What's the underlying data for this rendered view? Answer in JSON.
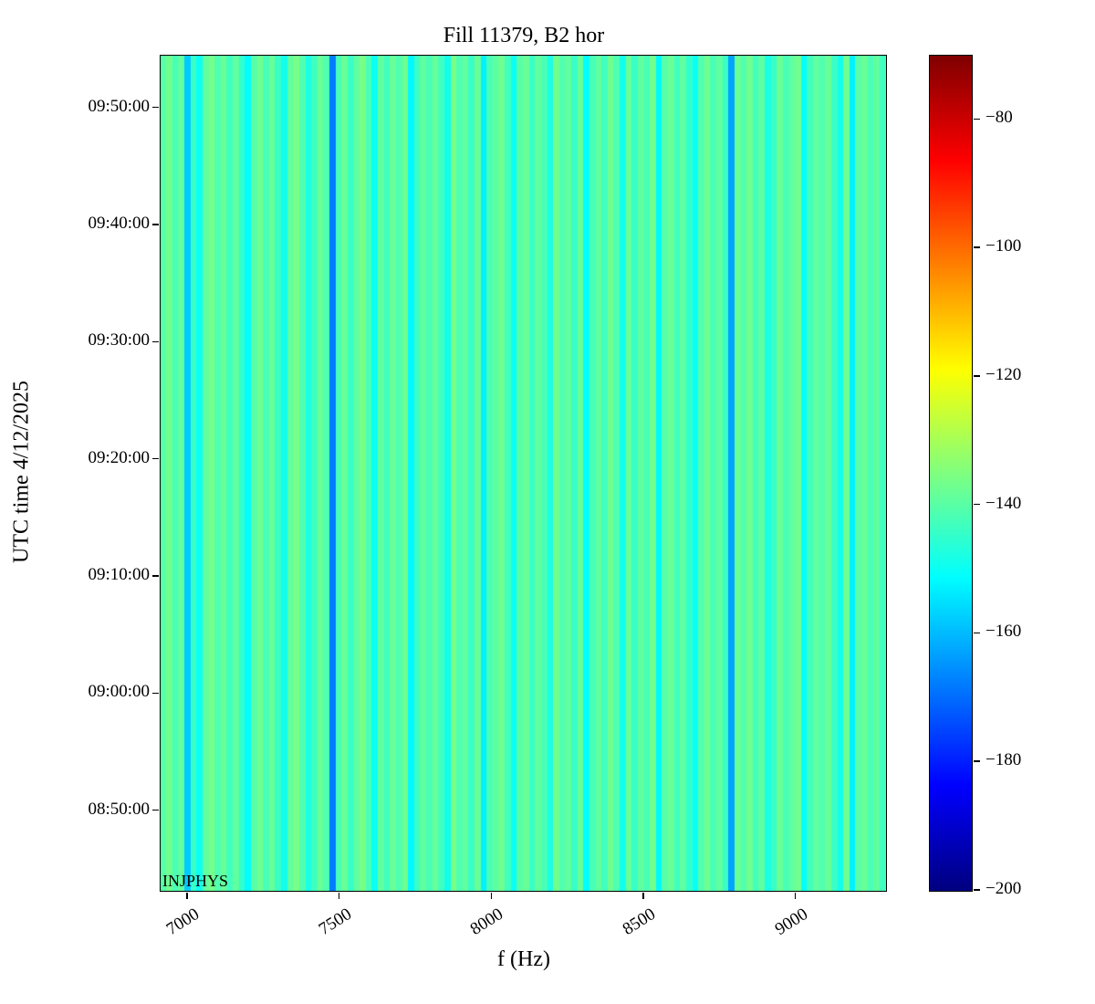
{
  "chart_data": {
    "type": "heatmap",
    "title": "Fill 11379, B2 hor",
    "xlabel": "f (Hz)",
    "ylabel": "UTC time 4/12/2025",
    "annotation": "INJPHYS",
    "colormap": "jet",
    "clim": [
      -200,
      -70
    ],
    "x_range_hz": [
      6910,
      9295
    ],
    "xticks": [
      {
        "label": "7000",
        "value": 7000
      },
      {
        "label": "7500",
        "value": 7500
      },
      {
        "label": "8000",
        "value": 8000
      },
      {
        "label": "8500",
        "value": 8500
      },
      {
        "label": "9000",
        "value": 9000
      }
    ],
    "y_range_minutes": [
      523.2,
      594.5
    ],
    "yticks": [
      {
        "label": "08:50:00",
        "minutes": 530
      },
      {
        "label": "09:00:00",
        "minutes": 540
      },
      {
        "label": "09:10:00",
        "minutes": 550
      },
      {
        "label": "09:20:00",
        "minutes": 560
      },
      {
        "label": "09:30:00",
        "minutes": 570
      },
      {
        "label": "09:40:00",
        "minutes": 580
      },
      {
        "label": "09:50:00",
        "minutes": 590
      }
    ],
    "colorbar_ticks": [
      {
        "label": "−80",
        "value": -80
      },
      {
        "label": "−100",
        "value": -100
      },
      {
        "label": "−120",
        "value": -120
      },
      {
        "label": "−140",
        "value": -140
      },
      {
        "label": "−160",
        "value": -160
      },
      {
        "label": "−180",
        "value": -180
      },
      {
        "label": "−200",
        "value": -200
      }
    ],
    "column_values_db": [
      -140,
      -137,
      -142,
      -139,
      -158,
      -144,
      -150,
      -139,
      -136,
      -141,
      -138,
      -143,
      -139,
      -145,
      -151,
      -140,
      -137,
      -142,
      -138,
      -144,
      -149,
      -139,
      -136,
      -141,
      -148,
      -143,
      -138,
      -141,
      -168,
      -142,
      -138,
      -144,
      -139,
      -136,
      -142,
      -150,
      -139,
      -143,
      -138,
      -141,
      -137,
      -152,
      -144,
      -139,
      -142,
      -138,
      -143,
      -149,
      -136,
      -141,
      -139,
      -144,
      -138,
      -153,
      -142,
      -139,
      -137,
      -143,
      -150,
      -140,
      -138,
      -144,
      -139,
      -142,
      -148,
      -137,
      -141,
      -139,
      -144,
      -138,
      -151,
      -142,
      -139,
      -143,
      -137,
      -141,
      -149,
      -138,
      -144,
      -139,
      -142,
      -137,
      -152,
      -140,
      -138,
      -143,
      -139,
      -145,
      -150,
      -141,
      -137,
      -142,
      -139,
      -144,
      -163,
      -138,
      -141,
      -137,
      -143,
      -139,
      -148,
      -144,
      -138,
      -142,
      -139,
      -137,
      -151,
      -143,
      -139,
      -141,
      -138,
      -144,
      -149,
      -137,
      -153,
      -140,
      -138,
      -142,
      -139,
      -143
    ]
  }
}
